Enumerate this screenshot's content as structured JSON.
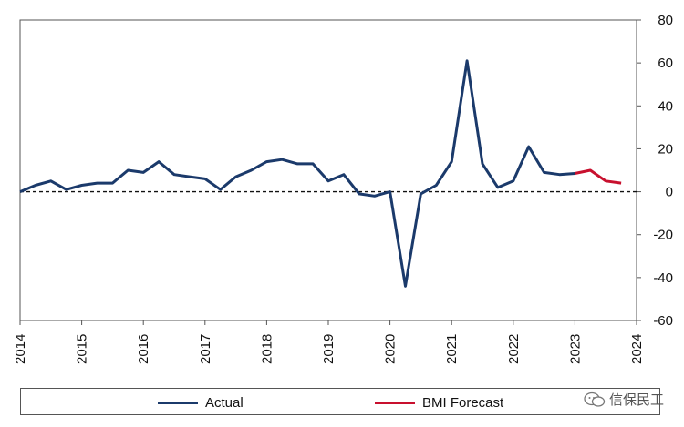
{
  "chart_data": {
    "type": "line",
    "x_ticks": [
      "2014",
      "2015",
      "2016",
      "2017",
      "2018",
      "2019",
      "2020",
      "2021",
      "2022",
      "2023",
      "2024"
    ],
    "y_ticks": [
      "80",
      "60",
      "40",
      "20",
      "0",
      "-20",
      "-40",
      "-60"
    ],
    "ylim": [
      -60,
      80
    ],
    "xlim": [
      2014,
      2024
    ],
    "reference_line": {
      "y": 0,
      "style": "dashed"
    },
    "legend_position": "bottom",
    "grid": false,
    "series": [
      {
        "name": "Actual",
        "color": "#1b3a6b",
        "x": [
          2014.0,
          2014.25,
          2014.5,
          2014.75,
          2015.0,
          2015.25,
          2015.5,
          2015.75,
          2016.0,
          2016.25,
          2016.5,
          2016.75,
          2017.0,
          2017.25,
          2017.5,
          2017.75,
          2018.0,
          2018.25,
          2018.5,
          2018.75,
          2019.0,
          2019.25,
          2019.5,
          2019.75,
          2020.0,
          2020.25,
          2020.5,
          2020.75,
          2021.0,
          2021.25,
          2021.5,
          2021.75,
          2022.0,
          2022.25,
          2022.5,
          2022.75,
          2023.0
        ],
        "y": [
          0,
          3,
          5,
          1,
          3,
          4,
          4,
          10,
          9,
          14,
          8,
          7,
          6,
          1,
          7,
          10,
          14,
          15,
          13,
          13,
          5,
          8,
          -1,
          -2,
          0,
          -44,
          -1,
          3,
          14,
          61,
          13,
          2,
          5,
          21,
          9,
          8,
          8.5
        ]
      },
      {
        "name": "BMI Forecast",
        "color": "#c8102e",
        "x": [
          2023.0,
          2023.25,
          2023.5,
          2023.75
        ],
        "y": [
          8.5,
          10,
          5,
          4
        ]
      }
    ]
  },
  "legend": {
    "actual_label": "Actual",
    "forecast_label": "BMI Forecast"
  },
  "watermark": {
    "text": "信保民工"
  }
}
